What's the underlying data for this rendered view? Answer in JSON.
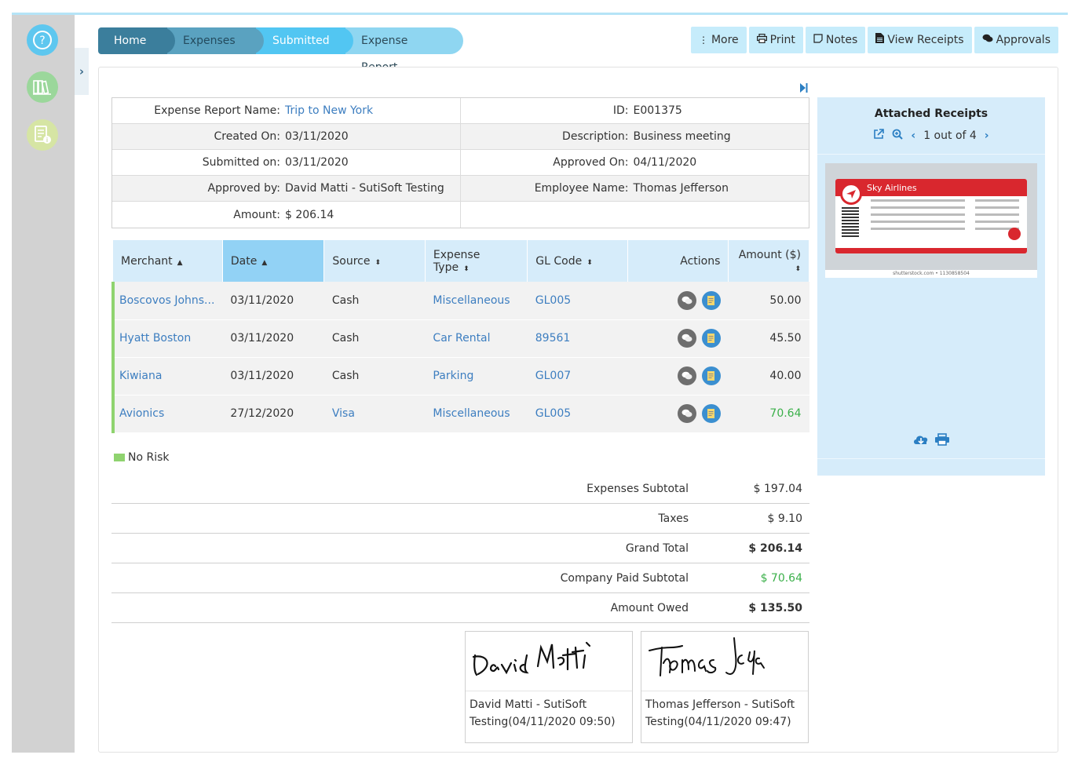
{
  "breadcrumb": {
    "home": "Home",
    "expenses": "Expenses",
    "submitted": "Submitted",
    "report": "Expense Report"
  },
  "toolbar": {
    "more": "More",
    "print": "Print",
    "notes": "Notes",
    "view_receipts": "View Receipts",
    "approvals": "Approvals"
  },
  "report": {
    "name_label": "Expense Report Name:",
    "name": "Trip to New York",
    "id_label": "ID:",
    "id": "E001375",
    "created_label": "Created On:",
    "created": "03/11/2020",
    "description_label": "Description:",
    "description": "Business meeting",
    "submitted_label": "Submitted on:",
    "submitted": "03/11/2020",
    "approved_on_label": "Approved On:",
    "approved_on": "04/11/2020",
    "approved_by_label": "Approved by:",
    "approved_by": "David Matti - SutiSoft Testing",
    "employee_label": "Employee Name:",
    "employee": "Thomas Jefferson",
    "amount_label": "Amount:",
    "amount": "$ 206.14"
  },
  "table": {
    "headers": {
      "merchant": "Merchant",
      "date": "Date",
      "source": "Source",
      "expense_type": "Expense Type",
      "gl_code": "GL Code",
      "actions": "Actions",
      "amount": "Amount ($)"
    },
    "rows": [
      {
        "merchant": "Boscovos Johns...",
        "date": "03/11/2020",
        "source": "Cash",
        "type": "Miscellaneous",
        "gl": "GL005",
        "amount": "50.00"
      },
      {
        "merchant": "Hyatt Boston",
        "date": "03/11/2020",
        "source": "Cash",
        "type": "Car Rental",
        "gl": "89561",
        "amount": "45.50"
      },
      {
        "merchant": "Kiwiana",
        "date": "03/11/2020",
        "source": "Cash",
        "type": "Parking",
        "gl": "GL007",
        "amount": "40.00"
      },
      {
        "merchant": "Avionics",
        "date": "27/12/2020",
        "source": "Visa",
        "type": "Miscellaneous",
        "gl": "GL005",
        "amount": "70.64"
      }
    ]
  },
  "risk_legend": "No Risk",
  "totals": {
    "subtotal_label": "Expenses Subtotal",
    "subtotal": "$ 197.04",
    "taxes_label": "Taxes",
    "taxes": "$ 9.10",
    "grand_label": "Grand Total",
    "grand": "$ 206.14",
    "company_label": "Company Paid Subtotal",
    "company": "$ 70.64",
    "owed_label": "Amount Owed",
    "owed": "$ 135.50"
  },
  "signatures": [
    {
      "name": "David Matti - SutiSoft",
      "stamp": "Testing(04/11/2020 09:50)"
    },
    {
      "name": "Thomas Jefferson - SutiSoft",
      "stamp": "Testing(04/11/2020 09:47)"
    }
  ],
  "receipts": {
    "title": "Attached Receipts",
    "pager": "1 out of 4",
    "airline": "Sky Airlines",
    "credit": "shutterstock.com • 1130858504"
  },
  "colors": {
    "accent": "#52c6f2",
    "link": "#3d7ec0",
    "risk_none": "#8fd36f",
    "company_paid": "#3bb04a"
  }
}
